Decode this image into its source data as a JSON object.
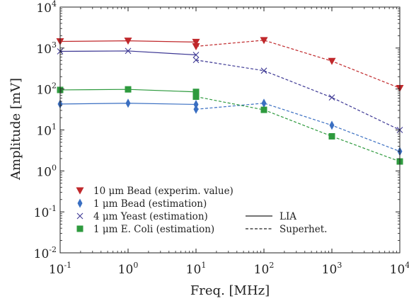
{
  "chart_data": {
    "type": "line",
    "title": "",
    "xlabel": "Freq. [MHz]",
    "ylabel": "Amplitude [mV]",
    "x_scale": "log",
    "y_scale": "log",
    "xlim": [
      0.1,
      10000
    ],
    "ylim": [
      0.01,
      10000
    ],
    "grid": false,
    "legend_position": "bottom-left",
    "x_ticks": [
      {
        "base": "10",
        "exp": "-1",
        "value": 0.1
      },
      {
        "base": "10",
        "exp": "0",
        "value": 1
      },
      {
        "base": "10",
        "exp": "1",
        "value": 10
      },
      {
        "base": "10",
        "exp": "2",
        "value": 100
      },
      {
        "base": "10",
        "exp": "3",
        "value": 1000
      },
      {
        "base": "10",
        "exp": "4",
        "value": 10000
      }
    ],
    "y_ticks": [
      {
        "base": "10",
        "exp": "-2",
        "value": 0.01
      },
      {
        "base": "10",
        "exp": "-1",
        "value": 0.1
      },
      {
        "base": "10",
        "exp": "0",
        "value": 1
      },
      {
        "base": "10",
        "exp": "1",
        "value": 10
      },
      {
        "base": "10",
        "exp": "2",
        "value": 100
      },
      {
        "base": "10",
        "exp": "3",
        "value": 1000
      },
      {
        "base": "10",
        "exp": "4",
        "value": 10000
      }
    ],
    "series": [
      {
        "name": "10 μm Bead (experim. value)",
        "color": "#c0282b",
        "marker": "triangle-down",
        "lia": {
          "x": [
            0.1,
            1,
            10
          ],
          "y": [
            1450,
            1500,
            1400
          ]
        },
        "superhet": {
          "x": [
            10,
            100,
            1000,
            10000
          ],
          "y": [
            1100,
            1550,
            480,
            105
          ]
        }
      },
      {
        "name": "1 μm  Bead (estimation)",
        "color": "#3a6fc2",
        "marker": "thin-diamond",
        "lia": {
          "x": [
            0.1,
            1,
            10
          ],
          "y": [
            43,
            45,
            42
          ]
        },
        "superhet": {
          "x": [
            10,
            100,
            1000,
            10000
          ],
          "y": [
            32,
            45,
            13,
            3
          ]
        }
      },
      {
        "name": "4 μm  Yeast (estimation)",
        "color": "#3b3693",
        "marker": "x",
        "lia": {
          "x": [
            0.1,
            1,
            10
          ],
          "y": [
            830,
            850,
            680
          ]
        },
        "superhet": {
          "x": [
            10,
            100,
            1000,
            10000
          ],
          "y": [
            510,
            280,
            62,
            10
          ]
        }
      },
      {
        "name": "1 μm E. Coli (estimation)",
        "color": "#2e9a3e",
        "marker": "square",
        "lia": {
          "x": [
            0.1,
            1,
            10
          ],
          "y": [
            95,
            98,
            85
          ]
        },
        "superhet": {
          "x": [
            10,
            100,
            1000,
            10000
          ],
          "y": [
            65,
            31,
            7,
            1.7
          ]
        }
      }
    ],
    "line_styles": [
      {
        "label": "LIA",
        "dash": "solid"
      },
      {
        "label": "Superhet.",
        "dash": "dashed"
      }
    ]
  }
}
